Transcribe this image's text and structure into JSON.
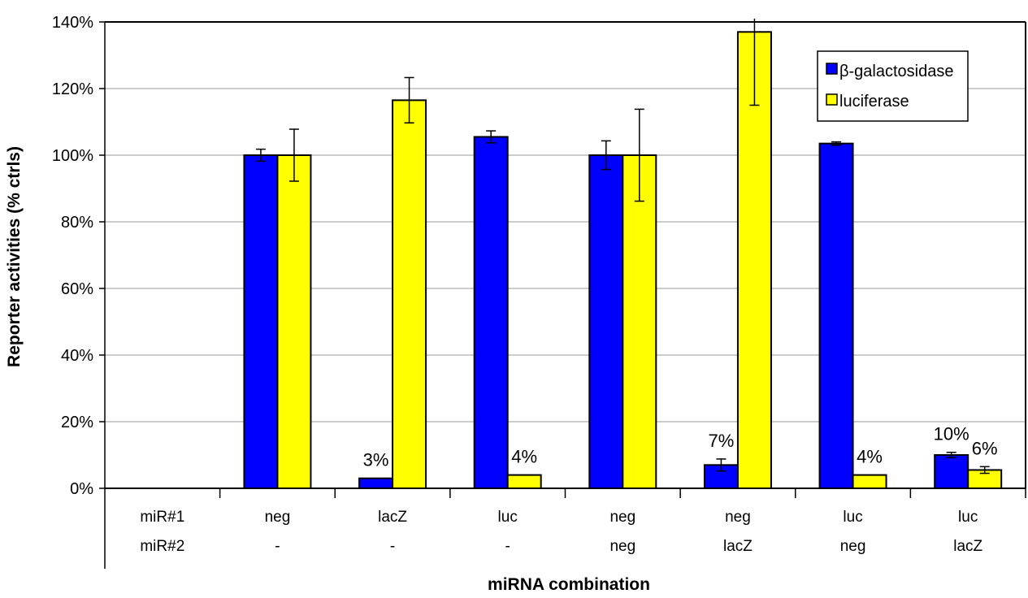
{
  "chart_data": {
    "type": "bar",
    "ylabel": "Reporter activities (% ctrls)",
    "xlabel": "miRNA combination",
    "ylim": [
      0,
      140
    ],
    "y_ticks": [
      "0%",
      "20%",
      "40%",
      "60%",
      "80%",
      "100%",
      "120%",
      "140%"
    ],
    "grid": true,
    "legend_position": "top-right",
    "row_labels": [
      "miR#1",
      "miR#2"
    ],
    "categories": [
      {
        "mir1": "neg",
        "mir2": "-"
      },
      {
        "mir1": "lacZ",
        "mir2": "-"
      },
      {
        "mir1": "luc",
        "mir2": "-"
      },
      {
        "mir1": "neg",
        "mir2": "neg"
      },
      {
        "mir1": "neg",
        "mir2": "lacZ"
      },
      {
        "mir1": "luc",
        "mir2": "neg"
      },
      {
        "mir1": "luc",
        "mir2": "lacZ"
      }
    ],
    "series": [
      {
        "name": "β-galactosidase",
        "color": "#0000ff",
        "values": [
          100,
          3,
          105.5,
          100,
          7,
          103.5,
          10
        ],
        "errors": [
          1.8,
          0,
          1.8,
          4.3,
          1.8,
          0.5,
          0.8
        ],
        "data_labels": [
          "",
          "3%",
          "",
          "",
          "7%",
          "",
          "10%"
        ]
      },
      {
        "name": "luciferase",
        "color": "#ffff00",
        "values": [
          100,
          116.5,
          4,
          100,
          137,
          4,
          5.5
        ],
        "errors": [
          7.8,
          6.8,
          0,
          13.8,
          22,
          0,
          1
        ],
        "data_labels": [
          "",
          "",
          "4%",
          "",
          "",
          "4%",
          "6%"
        ]
      }
    ]
  }
}
